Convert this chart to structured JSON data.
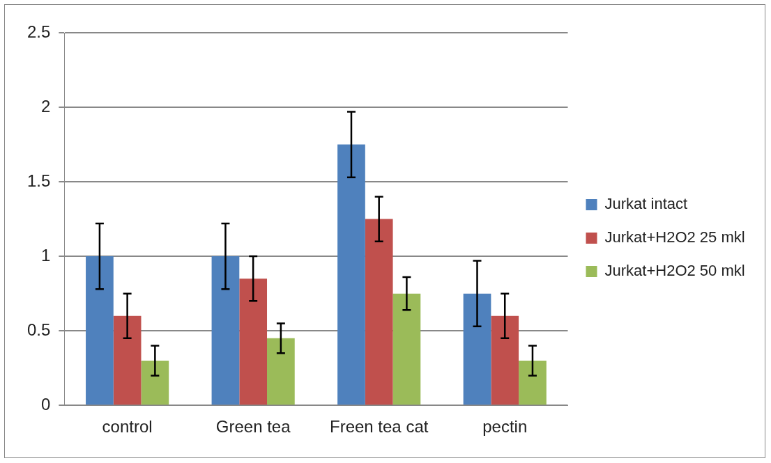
{
  "chart_data": {
    "type": "bar",
    "categories": [
      "control",
      "Green tea",
      "Freen tea cat",
      "pectin"
    ],
    "series": [
      {
        "name": "Jurkat intact",
        "color": "#4f81bd",
        "values": [
          1.0,
          1.0,
          1.75,
          0.75
        ],
        "errors": [
          0.22,
          0.22,
          0.22,
          0.22
        ]
      },
      {
        "name": "Jurkat+H2O2 25 mkl",
        "color": "#c0504d",
        "values": [
          0.6,
          0.85,
          1.25,
          0.6
        ],
        "errors": [
          0.15,
          0.15,
          0.15,
          0.15
        ]
      },
      {
        "name": "Jurkat+H2O2 50 mkl",
        "color": "#9bbb59",
        "values": [
          0.3,
          0.45,
          0.75,
          0.3
        ],
        "errors": [
          0.1,
          0.1,
          0.11,
          0.1
        ]
      }
    ],
    "ylim": [
      0,
      2.5
    ],
    "yticks": [
      0,
      0.5,
      1,
      1.5,
      2,
      2.5
    ],
    "grid": "y",
    "legend": "right"
  }
}
